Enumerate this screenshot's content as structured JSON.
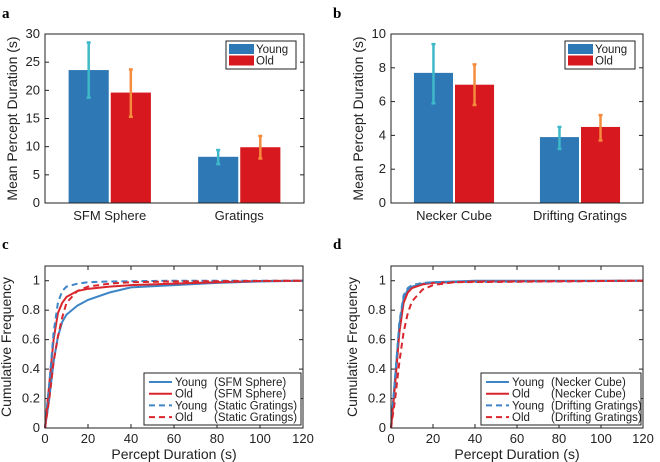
{
  "colors": {
    "young": "#2f78b6",
    "old": "#d7181f",
    "young_err": "#3fb8c9",
    "old_err": "#f58b3c",
    "young_line": "#3d85c6",
    "old_line": "#d9262c"
  },
  "chart_data": [
    {
      "panel": "a",
      "type": "bar",
      "ylabel": "Mean Percept Duration (s)",
      "ylim": [
        0,
        30
      ],
      "yticks": [
        "0",
        "5",
        "10",
        "15",
        "20",
        "25",
        "30"
      ],
      "categories": [
        "SFM Sphere",
        "Gratings"
      ],
      "legend_position": "top-right",
      "series": [
        {
          "name": "Young",
          "values": [
            23.6,
            8.2
          ],
          "err_low": [
            18.7,
            6.9
          ],
          "err_high": [
            28.5,
            9.4
          ]
        },
        {
          "name": "Old",
          "values": [
            19.6,
            9.9
          ],
          "err_low": [
            15.3,
            7.9
          ],
          "err_high": [
            23.7,
            11.9
          ]
        }
      ]
    },
    {
      "panel": "b",
      "type": "bar",
      "ylabel": "Mean Percept Duration (s)",
      "ylim": [
        0,
        10
      ],
      "yticks": [
        "0",
        "2",
        "4",
        "6",
        "8",
        "10"
      ],
      "categories": [
        "Necker Cube",
        "Drifting Gratings"
      ],
      "legend_position": "top-right",
      "series": [
        {
          "name": "Young",
          "values": [
            7.7,
            3.9
          ],
          "err_low": [
            5.9,
            3.2
          ],
          "err_high": [
            9.4,
            4.5
          ]
        },
        {
          "name": "Old",
          "values": [
            7.0,
            4.5
          ],
          "err_low": [
            5.8,
            3.7
          ],
          "err_high": [
            8.2,
            5.2
          ]
        }
      ]
    },
    {
      "panel": "c",
      "type": "line",
      "xlabel": "Percept Duration (s)",
      "ylabel": "Cumulative Frequency",
      "xlim": [
        0,
        120
      ],
      "ylim": [
        0,
        1.1
      ],
      "xticks": [
        "0",
        "20",
        "40",
        "60",
        "80",
        "100",
        "120"
      ],
      "yticks": [
        "0",
        "0.2",
        "0.4",
        "0.6",
        "0.8",
        "1"
      ],
      "legend_position": "bottom-right",
      "series": [
        {
          "name": "Young",
          "cond": "(SFM Sphere)",
          "group": "young",
          "dashed": false,
          "x": [
            0,
            2,
            4,
            6,
            8,
            10,
            15,
            20,
            30,
            40,
            60,
            80,
            100,
            120
          ],
          "y": [
            0,
            0.2,
            0.45,
            0.62,
            0.72,
            0.77,
            0.83,
            0.87,
            0.92,
            0.955,
            0.97,
            0.985,
            0.995,
            1
          ]
        },
        {
          "name": "Old",
          "cond": "(SFM Sphere)",
          "group": "old",
          "dashed": false,
          "x": [
            0,
            2,
            4,
            6,
            8,
            10,
            15,
            20,
            30,
            40,
            60,
            80,
            100,
            120
          ],
          "y": [
            0,
            0.3,
            0.6,
            0.78,
            0.85,
            0.89,
            0.93,
            0.945,
            0.96,
            0.97,
            0.98,
            0.99,
            0.998,
            1
          ]
        },
        {
          "name": "Young",
          "cond": "(Static Gratings)",
          "group": "young",
          "dashed": true,
          "x": [
            0,
            2,
            4,
            6,
            8,
            10,
            15,
            20,
            30,
            60,
            120
          ],
          "y": [
            0,
            0.3,
            0.65,
            0.85,
            0.93,
            0.96,
            0.98,
            0.99,
            0.995,
            1,
            1
          ]
        },
        {
          "name": "Old",
          "cond": "(Static Gratings)",
          "group": "old",
          "dashed": true,
          "x": [
            0,
            2,
            4,
            6,
            8,
            10,
            15,
            20,
            30,
            40,
            60,
            120
          ],
          "y": [
            0,
            0.2,
            0.45,
            0.62,
            0.75,
            0.85,
            0.93,
            0.96,
            0.98,
            0.99,
            0.995,
            1
          ]
        }
      ]
    },
    {
      "panel": "d",
      "type": "line",
      "xlabel": "Percept Duration (s)",
      "ylabel": "Cumulative Frequency",
      "xlim": [
        0,
        120
      ],
      "ylim": [
        0,
        1.1
      ],
      "xticks": [
        "0",
        "20",
        "40",
        "60",
        "80",
        "100",
        "120"
      ],
      "yticks": [
        "0",
        "0.2",
        "0.4",
        "0.6",
        "0.8",
        "1"
      ],
      "legend_position": "bottom-right",
      "series": [
        {
          "name": "Young",
          "cond": "(Necker Cube)",
          "group": "young",
          "dashed": false,
          "x": [
            0,
            2,
            4,
            6,
            8,
            10,
            15,
            20,
            40,
            120
          ],
          "y": [
            0,
            0.35,
            0.7,
            0.88,
            0.94,
            0.96,
            0.98,
            0.99,
            1,
            1
          ]
        },
        {
          "name": "Old",
          "cond": "(Necker Cube)",
          "group": "old",
          "dashed": false,
          "x": [
            0,
            2,
            4,
            6,
            8,
            10,
            15,
            20,
            40,
            120
          ],
          "y": [
            0,
            0.3,
            0.65,
            0.85,
            0.92,
            0.95,
            0.975,
            0.985,
            0.995,
            1
          ]
        },
        {
          "name": "Young",
          "cond": "(Drifting Gratings)",
          "group": "young",
          "dashed": true,
          "x": [
            0,
            2,
            4,
            6,
            8,
            10,
            15,
            20,
            120
          ],
          "y": [
            0,
            0.35,
            0.72,
            0.9,
            0.95,
            0.97,
            0.985,
            0.99,
            1
          ]
        },
        {
          "name": "Old",
          "cond": "(Drifting Gratings)",
          "group": "old",
          "dashed": true,
          "x": [
            0,
            2,
            4,
            6,
            8,
            10,
            15,
            20,
            30,
            120
          ],
          "y": [
            0,
            0.2,
            0.45,
            0.65,
            0.78,
            0.86,
            0.94,
            0.97,
            0.99,
            1
          ]
        }
      ]
    }
  ]
}
